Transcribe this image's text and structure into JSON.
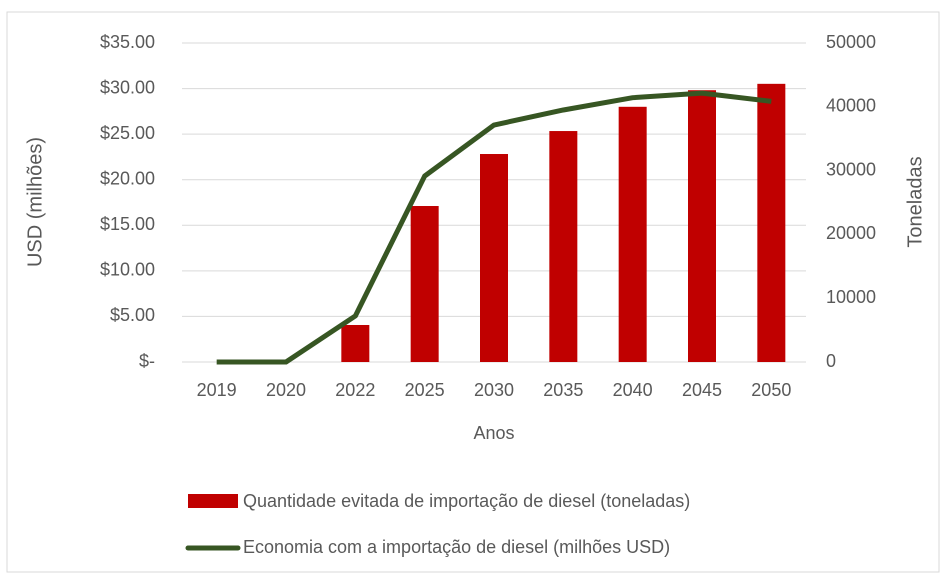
{
  "chart_data": {
    "type": "bar_line",
    "x_label": "Anos",
    "y_label": "USD (milhões)",
    "y2_label": "Toneladas",
    "categories": [
      "2019",
      "2020",
      "2022",
      "2025",
      "2030",
      "2035",
      "2040",
      "2045",
      "2050"
    ],
    "series": [
      {
        "name": "Quantidade evitada de importação de diesel (toneladas)",
        "type": "bar",
        "axis": "y2",
        "color": "#c00000",
        "values": [
          0,
          0,
          5800,
          24450,
          32600,
          36200,
          40000,
          42600,
          43600
        ]
      },
      {
        "name": "Economia com a importação de diesel (milhões USD)",
        "type": "line",
        "axis": "y",
        "color": "#375623",
        "values": [
          0,
          0,
          5.05,
          20.4,
          26.0,
          27.65,
          29.0,
          29.5,
          28.6
        ]
      }
    ],
    "ylim": [
      0,
      35
    ],
    "yticks": [
      {
        "value": 0,
        "label": "$-"
      },
      {
        "value": 5,
        "label": "$5.00"
      },
      {
        "value": 10,
        "label": "$10.00"
      },
      {
        "value": 15,
        "label": "$15.00"
      },
      {
        "value": 20,
        "label": "$20.00"
      },
      {
        "value": 25,
        "label": "$25.00"
      },
      {
        "value": 30,
        "label": "$30.00"
      },
      {
        "value": 35,
        "label": "$35.00"
      }
    ],
    "y2lim": [
      0,
      50000
    ],
    "y2ticks": [
      0,
      10000,
      20000,
      30000,
      40000,
      50000
    ],
    "grid": true,
    "legend": "bottom"
  }
}
